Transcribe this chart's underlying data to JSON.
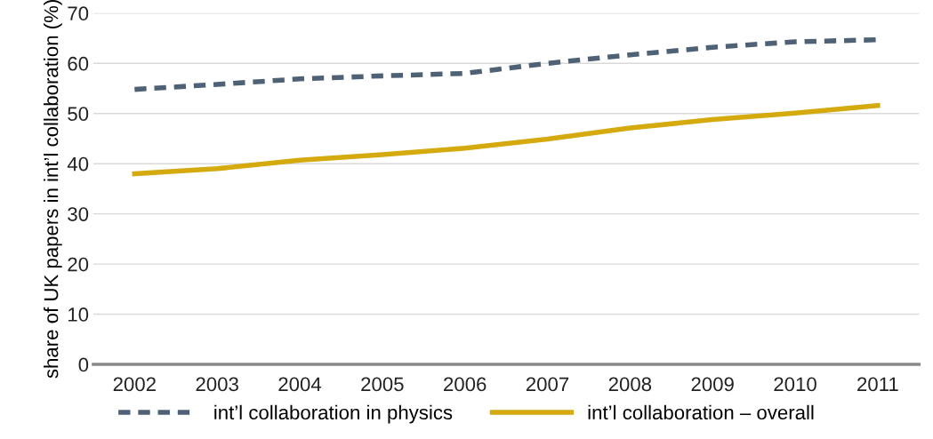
{
  "chart_data": {
    "type": "line",
    "ylabel": "share of UK papers in int’l collaboration (%)",
    "categories": [
      "2002",
      "2003",
      "2004",
      "2005",
      "2006",
      "2007",
      "2008",
      "2009",
      "2010",
      "2011"
    ],
    "series": [
      {
        "name": "int’l collaboration in physics",
        "color": "#4f6275",
        "line_style": "dashed",
        "values": [
          54.8,
          55.8,
          56.9,
          57.5,
          58.0,
          60.0,
          61.7,
          63.2,
          64.3,
          64.7
        ]
      },
      {
        "name": "int’l collaboration – overall",
        "color": "#d4aa0f",
        "line_style": "solid",
        "values": [
          38.0,
          39.0,
          40.7,
          41.8,
          43.1,
          44.9,
          47.1,
          48.8,
          50.1,
          51.6
        ]
      }
    ],
    "ylim": [
      0,
      70
    ],
    "yticks": [
      0,
      10,
      20,
      30,
      40,
      50,
      60,
      70
    ],
    "grid": "y",
    "legend": "bottom",
    "marker": "none"
  }
}
